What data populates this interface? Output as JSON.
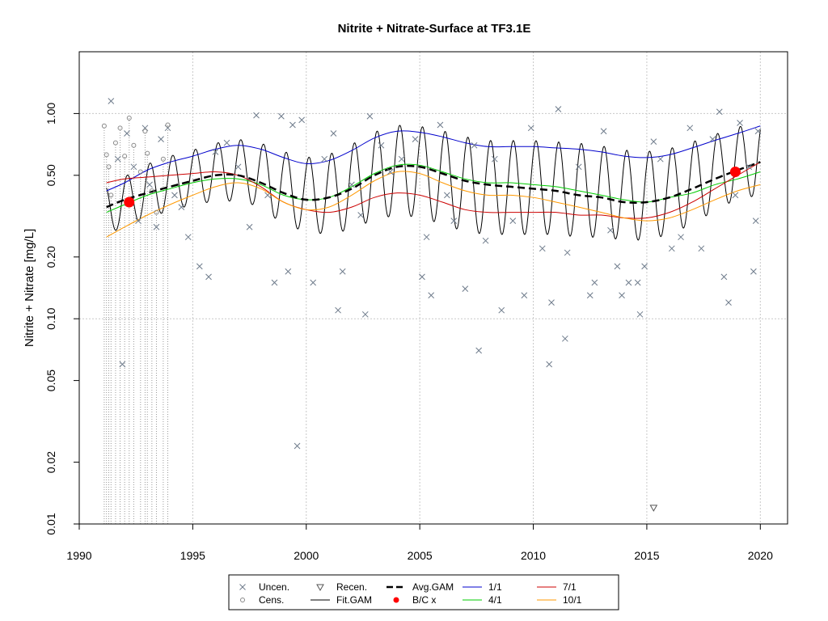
{
  "chart_data": {
    "type": "scatter",
    "title": "Nitrite + Nitrate-Surface at TF3.1E",
    "xlabel": "",
    "ylabel": "Nitrite + Nitrate [mg/L]",
    "xlim": [
      1990,
      2021.2
    ],
    "ylim": [
      0.01,
      2.0
    ],
    "yscale": "log",
    "grid": true,
    "xticks": [
      "1990",
      "1995",
      "2000",
      "2005",
      "2010",
      "2015",
      "2020"
    ],
    "yticks": [
      "0.01",
      "0.02",
      "0.05",
      "0.10",
      "0.20",
      "0.50",
      "1.00"
    ],
    "legend_placement": "bottom",
    "legend": [
      {
        "key": "uncen",
        "label": "Uncen.",
        "symbol": "x",
        "color": "#6e7b8b"
      },
      {
        "key": "cens",
        "label": "Cens.",
        "symbol": "o",
        "color": "#888888"
      },
      {
        "key": "recen",
        "label": "Recen.",
        "symbol": "triangle-down",
        "color": "#555555"
      },
      {
        "key": "fit",
        "label": "Fit.GAM",
        "symbol": "line",
        "color": "#000000"
      },
      {
        "key": "avg",
        "label": "Avg.GAM",
        "symbol": "dash",
        "color": "#000000"
      },
      {
        "key": "bc",
        "label": "B/C x",
        "symbol": "dot",
        "color": "#ff0000"
      },
      {
        "key": "jan",
        "label": "1/1",
        "symbol": "line",
        "color": "#0000cc"
      },
      {
        "key": "apr",
        "label": "4/1",
        "symbol": "line",
        "color": "#00cc00"
      },
      {
        "key": "jul",
        "label": "7/1",
        "symbol": "line",
        "color": "#cc0000"
      },
      {
        "key": "oct",
        "label": "10/1",
        "symbol": "line",
        "color": "#ff9900"
      }
    ],
    "series_colors": {
      "uncen": "#6e7b8b",
      "cens": "#888888",
      "recen": "#555555",
      "fit": "#000000",
      "avg": "#000000",
      "bc": "#ff0000",
      "jan": "#0000cc",
      "apr": "#00cc00",
      "jul": "#cc0000",
      "oct": "#ff9900"
    },
    "seasonal_curves": {
      "x": [
        1991.2,
        1992,
        1993,
        1994,
        1995,
        1996,
        1997,
        1998,
        1999,
        2000,
        2001,
        2002,
        2003,
        2004,
        2005,
        2006,
        2007,
        2008,
        2009,
        2010,
        2011,
        2012,
        2013,
        2014,
        2015,
        2016,
        2017,
        2018,
        2019,
        2020
      ],
      "jan": [
        0.42,
        0.46,
        0.53,
        0.58,
        0.62,
        0.67,
        0.7,
        0.67,
        0.61,
        0.57,
        0.59,
        0.66,
        0.76,
        0.82,
        0.81,
        0.77,
        0.72,
        0.69,
        0.69,
        0.69,
        0.68,
        0.67,
        0.65,
        0.62,
        0.61,
        0.63,
        0.68,
        0.74,
        0.8,
        0.87
      ],
      "apr": [
        0.33,
        0.36,
        0.4,
        0.43,
        0.46,
        0.48,
        0.48,
        0.45,
        0.4,
        0.38,
        0.39,
        0.44,
        0.51,
        0.56,
        0.56,
        0.52,
        0.48,
        0.46,
        0.46,
        0.45,
        0.44,
        0.42,
        0.4,
        0.38,
        0.37,
        0.39,
        0.41,
        0.45,
        0.48,
        0.52
      ],
      "jul": [
        0.46,
        0.48,
        0.49,
        0.5,
        0.51,
        0.52,
        0.5,
        0.44,
        0.37,
        0.34,
        0.33,
        0.35,
        0.39,
        0.41,
        0.4,
        0.37,
        0.34,
        0.33,
        0.33,
        0.33,
        0.33,
        0.32,
        0.32,
        0.31,
        0.31,
        0.33,
        0.37,
        0.43,
        0.5,
        0.58
      ],
      "oct": [
        0.25,
        0.28,
        0.32,
        0.36,
        0.4,
        0.44,
        0.46,
        0.43,
        0.37,
        0.34,
        0.35,
        0.4,
        0.47,
        0.52,
        0.51,
        0.46,
        0.42,
        0.4,
        0.4,
        0.39,
        0.37,
        0.35,
        0.33,
        0.31,
        0.3,
        0.31,
        0.34,
        0.38,
        0.42,
        0.45
      ],
      "avg": [
        0.35,
        0.38,
        0.41,
        0.44,
        0.47,
        0.5,
        0.5,
        0.46,
        0.41,
        0.38,
        0.39,
        0.43,
        0.5,
        0.55,
        0.55,
        0.51,
        0.47,
        0.45,
        0.44,
        0.43,
        0.42,
        0.4,
        0.39,
        0.37,
        0.37,
        0.39,
        0.43,
        0.48,
        0.53,
        0.58
      ]
    },
    "bc_points": [
      {
        "x": 1992.2,
        "y": 0.37
      },
      {
        "x": 2018.9,
        "y": 0.52
      }
    ],
    "recensored_points": [
      {
        "x": 2015.3,
        "y": 0.012
      }
    ],
    "uncensored_points": [
      {
        "x": 1991.4,
        "y": 1.15
      },
      {
        "x": 1991.7,
        "y": 0.6
      },
      {
        "x": 1991.9,
        "y": 0.06
      },
      {
        "x": 1992.1,
        "y": 0.8
      },
      {
        "x": 1992.4,
        "y": 0.55
      },
      {
        "x": 1992.6,
        "y": 0.3
      },
      {
        "x": 1992.9,
        "y": 0.85
      },
      {
        "x": 1993.1,
        "y": 0.45
      },
      {
        "x": 1993.4,
        "y": 0.28
      },
      {
        "x": 1993.6,
        "y": 0.75
      },
      {
        "x": 1993.9,
        "y": 0.85
      },
      {
        "x": 1994.2,
        "y": 0.4
      },
      {
        "x": 1994.5,
        "y": 0.35
      },
      {
        "x": 1994.8,
        "y": 0.25
      },
      {
        "x": 1995.3,
        "y": 0.18
      },
      {
        "x": 1995.7,
        "y": 0.16
      },
      {
        "x": 1996.0,
        "y": 0.65
      },
      {
        "x": 1996.5,
        "y": 0.72
      },
      {
        "x": 1997.0,
        "y": 0.55
      },
      {
        "x": 1997.5,
        "y": 0.28
      },
      {
        "x": 1997.8,
        "y": 0.98
      },
      {
        "x": 1998.3,
        "y": 0.4
      },
      {
        "x": 1998.6,
        "y": 0.15
      },
      {
        "x": 1998.9,
        "y": 0.97
      },
      {
        "x": 1999.2,
        "y": 0.17
      },
      {
        "x": 1999.4,
        "y": 0.88
      },
      {
        "x": 1999.6,
        "y": 0.024
      },
      {
        "x": 1999.8,
        "y": 0.93
      },
      {
        "x": 2000.3,
        "y": 0.15
      },
      {
        "x": 2000.8,
        "y": 0.6
      },
      {
        "x": 2001.2,
        "y": 0.8
      },
      {
        "x": 2001.4,
        "y": 0.11
      },
      {
        "x": 2001.6,
        "y": 0.17
      },
      {
        "x": 2002.0,
        "y": 0.45
      },
      {
        "x": 2002.4,
        "y": 0.32
      },
      {
        "x": 2002.6,
        "y": 0.105
      },
      {
        "x": 2002.8,
        "y": 0.97
      },
      {
        "x": 2003.3,
        "y": 0.7
      },
      {
        "x": 2003.7,
        "y": 0.52
      },
      {
        "x": 2004.2,
        "y": 0.6
      },
      {
        "x": 2004.8,
        "y": 0.75
      },
      {
        "x": 2005.1,
        "y": 0.16
      },
      {
        "x": 2005.3,
        "y": 0.25
      },
      {
        "x": 2005.5,
        "y": 0.13
      },
      {
        "x": 2005.9,
        "y": 0.88
      },
      {
        "x": 2006.2,
        "y": 0.4
      },
      {
        "x": 2006.5,
        "y": 0.3
      },
      {
        "x": 2007.0,
        "y": 0.14
      },
      {
        "x": 2007.4,
        "y": 0.7
      },
      {
        "x": 2007.6,
        "y": 0.07
      },
      {
        "x": 2007.9,
        "y": 0.24
      },
      {
        "x": 2008.3,
        "y": 0.6
      },
      {
        "x": 2008.6,
        "y": 0.11
      },
      {
        "x": 2009.1,
        "y": 0.3
      },
      {
        "x": 2009.6,
        "y": 0.13
      },
      {
        "x": 2009.9,
        "y": 0.85
      },
      {
        "x": 2010.4,
        "y": 0.22
      },
      {
        "x": 2010.7,
        "y": 0.06
      },
      {
        "x": 2010.8,
        "y": 0.12
      },
      {
        "x": 2011.1,
        "y": 1.05
      },
      {
        "x": 2011.4,
        "y": 0.08
      },
      {
        "x": 2011.5,
        "y": 0.21
      },
      {
        "x": 2012.0,
        "y": 0.55
      },
      {
        "x": 2012.5,
        "y": 0.13
      },
      {
        "x": 2012.7,
        "y": 0.15
      },
      {
        "x": 2013.1,
        "y": 0.82
      },
      {
        "x": 2013.4,
        "y": 0.27
      },
      {
        "x": 2013.7,
        "y": 0.18
      },
      {
        "x": 2013.9,
        "y": 0.13
      },
      {
        "x": 2014.2,
        "y": 0.15
      },
      {
        "x": 2014.6,
        "y": 0.15
      },
      {
        "x": 2014.7,
        "y": 0.105
      },
      {
        "x": 2014.9,
        "y": 0.18
      },
      {
        "x": 2015.3,
        "y": 0.73
      },
      {
        "x": 2015.6,
        "y": 0.6
      },
      {
        "x": 2016.1,
        "y": 0.22
      },
      {
        "x": 2016.5,
        "y": 0.25
      },
      {
        "x": 2016.9,
        "y": 0.85
      },
      {
        "x": 2017.4,
        "y": 0.22
      },
      {
        "x": 2017.9,
        "y": 0.75
      },
      {
        "x": 2018.2,
        "y": 1.02
      },
      {
        "x": 2018.4,
        "y": 0.16
      },
      {
        "x": 2018.6,
        "y": 0.12
      },
      {
        "x": 2018.9,
        "y": 0.4
      },
      {
        "x": 2019.1,
        "y": 0.9
      },
      {
        "x": 2019.5,
        "y": 0.55
      },
      {
        "x": 2019.7,
        "y": 0.17
      },
      {
        "x": 2019.8,
        "y": 0.3
      },
      {
        "x": 2019.9,
        "y": 0.82
      }
    ],
    "censored_points": [
      {
        "x": 1991.1,
        "y": 0.87
      },
      {
        "x": 1991.2,
        "y": 0.63
      },
      {
        "x": 1991.3,
        "y": 0.55
      },
      {
        "x": 1991.4,
        "y": 0.4
      },
      {
        "x": 1991.6,
        "y": 0.72
      },
      {
        "x": 1991.8,
        "y": 0.85
      },
      {
        "x": 1992.0,
        "y": 0.62
      },
      {
        "x": 1992.2,
        "y": 0.95
      },
      {
        "x": 1992.4,
        "y": 0.7
      },
      {
        "x": 1992.7,
        "y": 0.52
      },
      {
        "x": 1992.9,
        "y": 0.82
      },
      {
        "x": 1993.0,
        "y": 0.64
      },
      {
        "x": 1993.2,
        "y": 0.42
      },
      {
        "x": 1993.4,
        "y": 0.33
      },
      {
        "x": 1993.7,
        "y": 0.6
      },
      {
        "x": 1993.9,
        "y": 0.88
      }
    ],
    "censored_x": [
      1991.1,
      1991.2,
      1991.3,
      1991.4,
      1991.6,
      1991.8,
      1992.0,
      1992.2,
      1992.4,
      1992.7,
      1992.9,
      1993.0,
      1993.2,
      1993.4,
      1993.7,
      1993.9
    ]
  }
}
